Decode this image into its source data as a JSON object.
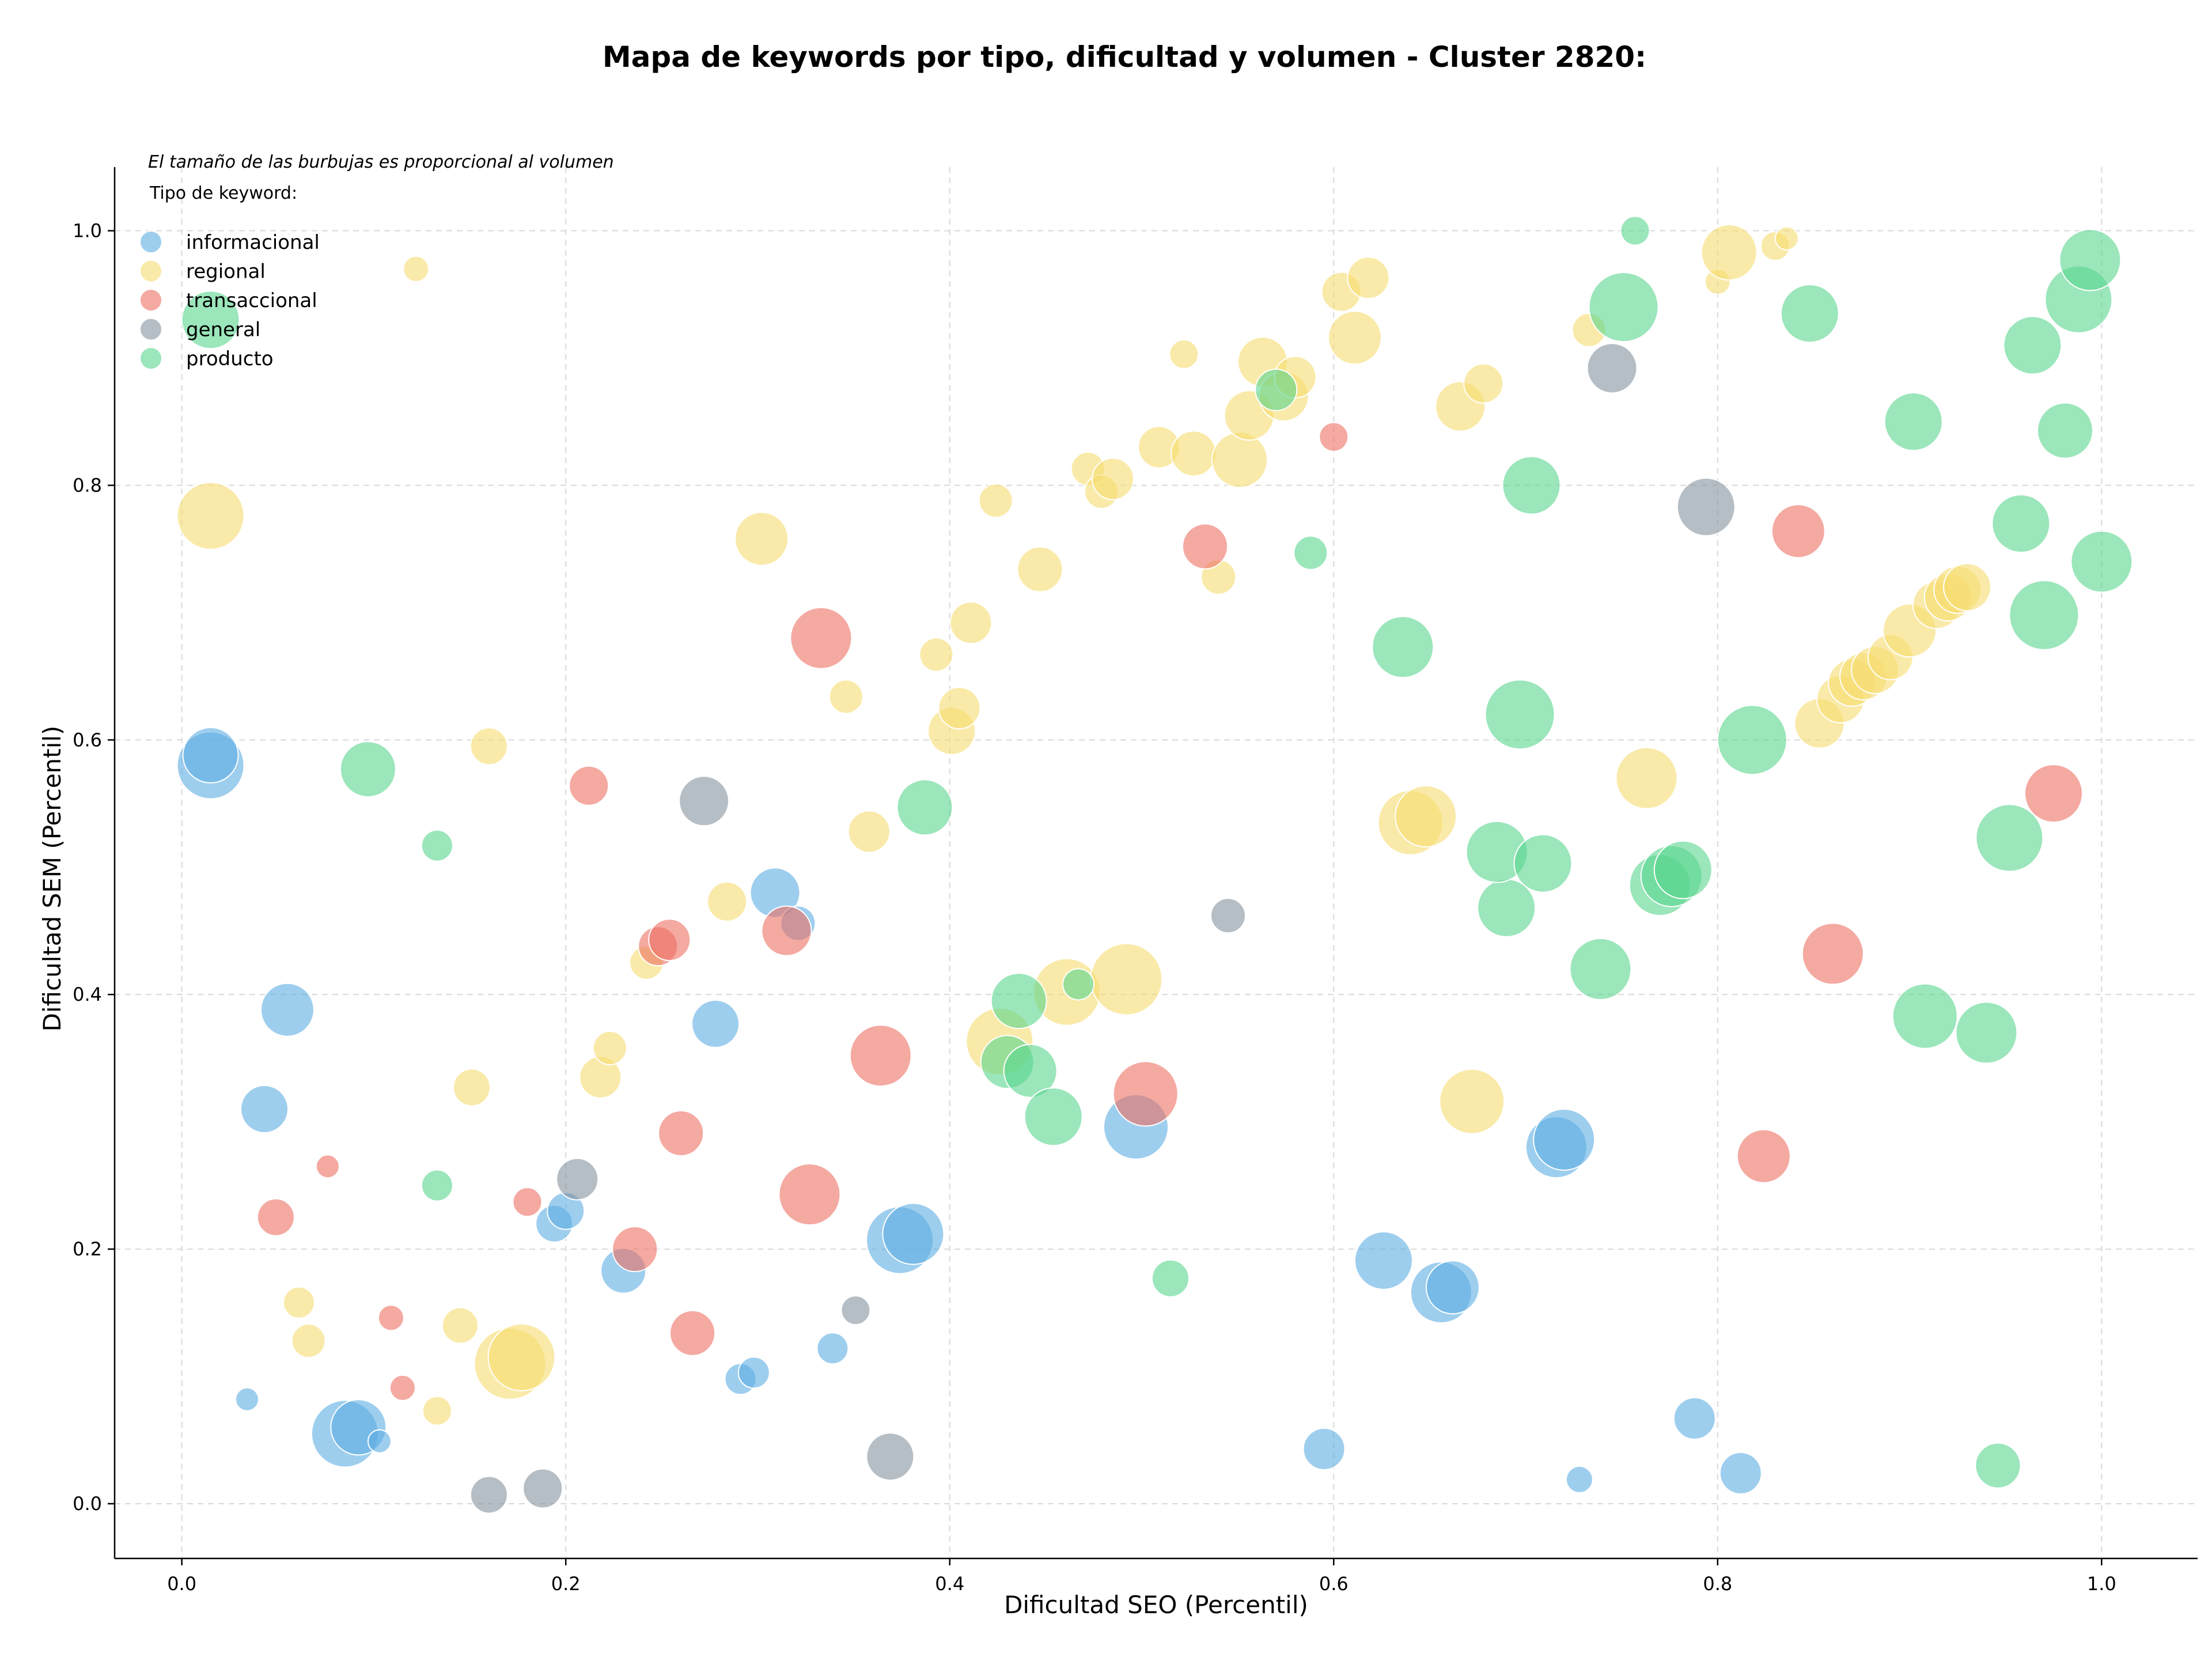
{
  "chart_data": {
    "type": "scatter",
    "title": "Mapa de keywords por tipo, dificultad y volumen - Cluster 2820:",
    "xlabel": "Dificultad SEO (Percentil)",
    "ylabel": "Dificultad SEM (Percentil)",
    "xlim": [
      -0.035,
      1.05
    ],
    "ylim": [
      -0.043,
      1.05
    ],
    "xticks": [
      0.0,
      0.2,
      0.4,
      0.6,
      0.8,
      1.0
    ],
    "yticks": [
      0.0,
      0.2,
      0.4,
      0.6,
      0.8,
      1.0
    ],
    "tick_labels_x": [
      "0.0",
      "0.2",
      "0.4",
      "0.6",
      "0.8",
      "1.0"
    ],
    "tick_labels_y": [
      "0.0",
      "0.2",
      "0.4",
      "0.6",
      "0.8",
      "1.0"
    ],
    "grid": true,
    "annotation": "El tamaño de las burbujas es proporcional al volumen",
    "legend": {
      "title": "Tipo de keyword:",
      "position": "top-left"
    },
    "series": [
      {
        "name": "informacional",
        "color": "#5DADE2",
        "points": [
          [
            0.015,
            0.58,
            58
          ],
          [
            0.015,
            0.588,
            48
          ],
          [
            0.055,
            0.388,
            46
          ],
          [
            0.043,
            0.31,
            41
          ],
          [
            0.034,
            0.082,
            20
          ],
          [
            0.085,
            0.055,
            58
          ],
          [
            0.092,
            0.06,
            48
          ],
          [
            0.103,
            0.049,
            20
          ],
          [
            0.194,
            0.22,
            32
          ],
          [
            0.2,
            0.23,
            32
          ],
          [
            0.23,
            0.183,
            39
          ],
          [
            0.278,
            0.377,
            41
          ],
          [
            0.309,
            0.48,
            43
          ],
          [
            0.321,
            0.456,
            30
          ],
          [
            0.291,
            0.098,
            27
          ],
          [
            0.298,
            0.103,
            27
          ],
          [
            0.339,
            0.122,
            27
          ],
          [
            0.374,
            0.207,
            58
          ],
          [
            0.381,
            0.212,
            53
          ],
          [
            0.497,
            0.296,
            56
          ],
          [
            0.626,
            0.191,
            50
          ],
          [
            0.656,
            0.166,
            53
          ],
          [
            0.662,
            0.17,
            46
          ],
          [
            0.716,
            0.28,
            53
          ],
          [
            0.72,
            0.286,
            53
          ],
          [
            0.595,
            0.043,
            36
          ],
          [
            0.728,
            0.019,
            23
          ],
          [
            0.788,
            0.067,
            36
          ],
          [
            0.812,
            0.024,
            36
          ]
        ]
      },
      {
        "name": "regional",
        "color": "#F7DC6F",
        "points": [
          [
            0.122,
            0.97,
            22
          ],
          [
            0.015,
            0.776,
            58
          ],
          [
            0.16,
            0.595,
            32
          ],
          [
            0.151,
            0.327,
            32
          ],
          [
            0.061,
            0.158,
            27
          ],
          [
            0.066,
            0.128,
            29
          ],
          [
            0.133,
            0.073,
            25
          ],
          [
            0.145,
            0.14,
            31
          ],
          [
            0.171,
            0.11,
            62
          ],
          [
            0.177,
            0.115,
            58
          ],
          [
            0.218,
            0.335,
            36
          ],
          [
            0.223,
            0.358,
            29
          ],
          [
            0.242,
            0.425,
            29
          ],
          [
            0.284,
            0.473,
            34
          ],
          [
            0.302,
            0.758,
            46
          ],
          [
            0.346,
            0.634,
            29
          ],
          [
            0.358,
            0.528,
            36
          ],
          [
            0.393,
            0.667,
            29
          ],
          [
            0.401,
            0.607,
            41
          ],
          [
            0.405,
            0.625,
            36
          ],
          [
            0.411,
            0.692,
            36
          ],
          [
            0.424,
            0.788,
            29
          ],
          [
            0.447,
            0.734,
            39
          ],
          [
            0.426,
            0.363,
            58
          ],
          [
            0.461,
            0.402,
            58
          ],
          [
            0.492,
            0.412,
            62
          ],
          [
            0.472,
            0.813,
            29
          ],
          [
            0.479,
            0.795,
            29
          ],
          [
            0.485,
            0.805,
            36
          ],
          [
            0.509,
            0.83,
            36
          ],
          [
            0.522,
            0.903,
            25
          ],
          [
            0.527,
            0.825,
            39
          ],
          [
            0.54,
            0.728,
            30
          ],
          [
            0.551,
            0.82,
            48
          ],
          [
            0.556,
            0.855,
            43
          ],
          [
            0.563,
            0.897,
            43
          ],
          [
            0.574,
            0.87,
            43
          ],
          [
            0.58,
            0.885,
            36
          ],
          [
            0.604,
            0.952,
            34
          ],
          [
            0.611,
            0.916,
            46
          ],
          [
            0.618,
            0.963,
            36
          ],
          [
            0.666,
            0.862,
            43
          ],
          [
            0.678,
            0.88,
            34
          ],
          [
            0.672,
            0.316,
            56
          ],
          [
            0.64,
            0.535,
            56
          ],
          [
            0.648,
            0.54,
            53
          ],
          [
            0.763,
            0.57,
            53
          ],
          [
            0.733,
            0.922,
            29
          ],
          [
            0.8,
            0.96,
            22
          ],
          [
            0.806,
            0.983,
            48
          ],
          [
            0.83,
            0.988,
            25
          ],
          [
            0.836,
            0.994,
            20
          ],
          [
            0.853,
            0.613,
            43
          ],
          [
            0.864,
            0.632,
            41
          ],
          [
            0.87,
            0.645,
            41
          ],
          [
            0.876,
            0.65,
            41
          ],
          [
            0.882,
            0.655,
            41
          ],
          [
            0.89,
            0.665,
            39
          ],
          [
            0.9,
            0.686,
            46
          ],
          [
            0.914,
            0.706,
            41
          ],
          [
            0.92,
            0.712,
            41
          ],
          [
            0.925,
            0.718,
            41
          ],
          [
            0.93,
            0.72,
            41
          ]
        ]
      },
      {
        "name": "transaccional",
        "color": "#EC7063",
        "points": [
          [
            0.076,
            0.265,
            20
          ],
          [
            0.049,
            0.225,
            32
          ],
          [
            0.109,
            0.146,
            22
          ],
          [
            0.115,
            0.091,
            22
          ],
          [
            0.18,
            0.237,
            25
          ],
          [
            0.212,
            0.564,
            34
          ],
          [
            0.236,
            0.2,
            39
          ],
          [
            0.248,
            0.438,
            34
          ],
          [
            0.254,
            0.443,
            36
          ],
          [
            0.26,
            0.291,
            39
          ],
          [
            0.266,
            0.134,
            39
          ],
          [
            0.315,
            0.45,
            43
          ],
          [
            0.327,
            0.243,
            53
          ],
          [
            0.333,
            0.68,
            53
          ],
          [
            0.364,
            0.352,
            53
          ],
          [
            0.502,
            0.322,
            56
          ],
          [
            0.533,
            0.752,
            39
          ],
          [
            0.6,
            0.838,
            25
          ],
          [
            0.824,
            0.273,
            46
          ],
          [
            0.842,
            0.764,
            46
          ],
          [
            0.86,
            0.432,
            53
          ],
          [
            0.975,
            0.558,
            50
          ]
        ]
      },
      {
        "name": "general",
        "color": "#85929E",
        "points": [
          [
            0.16,
            0.007,
            32
          ],
          [
            0.188,
            0.012,
            34
          ],
          [
            0.206,
            0.255,
            36
          ],
          [
            0.272,
            0.552,
            43
          ],
          [
            0.351,
            0.152,
            25
          ],
          [
            0.369,
            0.037,
            41
          ],
          [
            0.545,
            0.462,
            30
          ],
          [
            0.745,
            0.892,
            43
          ],
          [
            0.794,
            0.783,
            50
          ]
        ]
      },
      {
        "name": "producto",
        "color": "#58D68D",
        "points": [
          [
            0.015,
            0.93,
            50
          ],
          [
            0.097,
            0.577,
            48
          ],
          [
            0.133,
            0.517,
            27
          ],
          [
            0.133,
            0.25,
            27
          ],
          [
            0.387,
            0.547,
            48
          ],
          [
            0.43,
            0.347,
            46
          ],
          [
            0.436,
            0.395,
            48
          ],
          [
            0.442,
            0.34,
            46
          ],
          [
            0.454,
            0.304,
            50
          ],
          [
            0.467,
            0.408,
            27
          ],
          [
            0.515,
            0.177,
            32
          ],
          [
            0.57,
            0.875,
            36
          ],
          [
            0.588,
            0.747,
            29
          ],
          [
            0.636,
            0.673,
            53
          ],
          [
            0.69,
            0.468,
            50
          ],
          [
            0.685,
            0.512,
            53
          ],
          [
            0.697,
            0.62,
            60
          ],
          [
            0.703,
            0.8,
            50
          ],
          [
            0.709,
            0.503,
            50
          ],
          [
            0.739,
            0.42,
            53
          ],
          [
            0.751,
            0.94,
            60
          ],
          [
            0.757,
            1.0,
            25
          ],
          [
            0.77,
            0.486,
            53
          ],
          [
            0.776,
            0.493,
            53
          ],
          [
            0.782,
            0.498,
            50
          ],
          [
            0.818,
            0.6,
            60
          ],
          [
            0.848,
            0.935,
            50
          ],
          [
            0.902,
            0.85,
            50
          ],
          [
            0.908,
            0.383,
            56
          ],
          [
            0.94,
            0.37,
            53
          ],
          [
            0.946,
            0.03,
            39
          ],
          [
            0.952,
            0.523,
            58
          ],
          [
            0.958,
            0.77,
            50
          ],
          [
            0.964,
            0.91,
            50
          ],
          [
            0.97,
            0.698,
            60
          ],
          [
            0.981,
            0.843,
            48
          ],
          [
            0.988,
            0.946,
            58
          ],
          [
            0.994,
            0.977,
            53
          ],
          [
            1.0,
            0.74,
            53
          ]
        ]
      }
    ]
  }
}
